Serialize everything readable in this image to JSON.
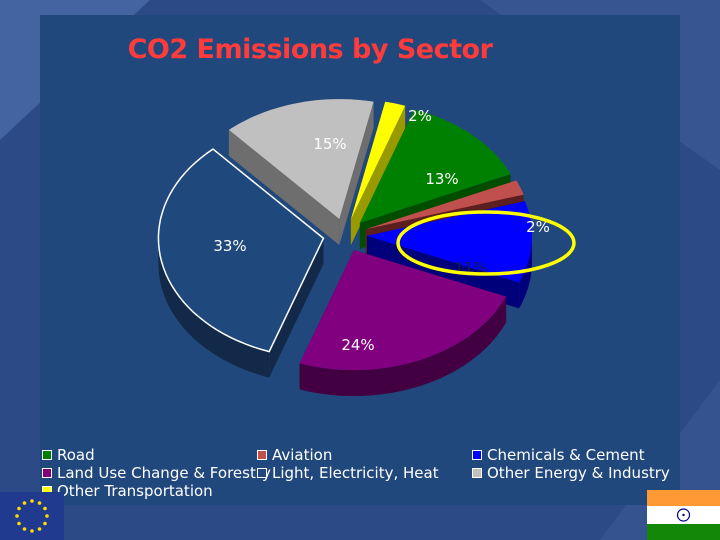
{
  "chart_data": {
    "type": "pie",
    "title": "CO2 Emissions by Sector",
    "slices": [
      {
        "label": "Other Transportation",
        "value": 2,
        "pct_label": "2%",
        "color": "#ffff00",
        "side": "#999900"
      },
      {
        "label": "Road",
        "value": 13,
        "pct_label": "13%",
        "color": "#008000",
        "side": "#004d00"
      },
      {
        "label": "Aviation",
        "value": 2,
        "pct_label": "2%",
        "color": "#c0504d",
        "side": "#5c1f1f"
      },
      {
        "label": "Chemicals & Cement",
        "value": 11,
        "pct_label": "11%",
        "color": "#0000ff",
        "side": "#00007a"
      },
      {
        "label": "Land Use Change & Forestry",
        "value": 24,
        "pct_label": "24%",
        "color": "#800080",
        "side": "#420042"
      },
      {
        "label": "Light, Electricity, Heat",
        "value": 33,
        "pct_label": "33%",
        "color": "#1f497d",
        "side": "#13294a"
      },
      {
        "label": "Other Energy & Industry",
        "value": 15,
        "pct_label": "15%",
        "color": "#c0c0c0",
        "side": "#6e6e6e"
      }
    ],
    "legend": [
      "Road",
      "Aviation",
      "Chemicals & Cement",
      "Land Use Change & Forestry",
      "Light, Electricity, Heat",
      "Other Energy & Industry",
      "Other Transportation"
    ],
    "legend_position": "bottom",
    "highlight": "Aviation"
  },
  "colors": {
    "background": "#2b4a86",
    "panel": "#21487c",
    "title": "#ff3b3b",
    "highlight_ring": "#ffff00"
  }
}
